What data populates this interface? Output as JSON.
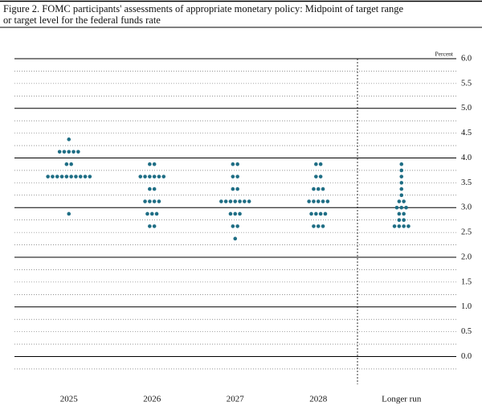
{
  "chart_data": {
    "type": "dot",
    "title_lines": [
      "Figure 2. FOMC participants' assessments of appropriate monetary policy: Midpoint of target range",
      "or target level for the federal funds rate"
    ],
    "y_unit": "Percent",
    "categories": [
      "2025",
      "2026",
      "2027",
      "2028",
      "Longer run"
    ],
    "dots": [
      [
        {
          "rate": 4.375,
          "count": 1
        },
        {
          "rate": 4.125,
          "count": 5
        },
        {
          "rate": 3.875,
          "count": 2
        },
        {
          "rate": 3.625,
          "count": 10
        },
        {
          "rate": 2.875,
          "count": 1
        }
      ],
      [
        {
          "rate": 3.875,
          "count": 2
        },
        {
          "rate": 3.625,
          "count": 6
        },
        {
          "rate": 3.375,
          "count": 2
        },
        {
          "rate": 3.125,
          "count": 4
        },
        {
          "rate": 2.875,
          "count": 3
        },
        {
          "rate": 2.625,
          "count": 2
        }
      ],
      [
        {
          "rate": 3.875,
          "count": 2
        },
        {
          "rate": 3.625,
          "count": 2
        },
        {
          "rate": 3.375,
          "count": 2
        },
        {
          "rate": 3.125,
          "count": 7
        },
        {
          "rate": 2.875,
          "count": 3
        },
        {
          "rate": 2.625,
          "count": 2
        },
        {
          "rate": 2.375,
          "count": 1
        }
      ],
      [
        {
          "rate": 3.875,
          "count": 2
        },
        {
          "rate": 3.625,
          "count": 2
        },
        {
          "rate": 3.375,
          "count": 3
        },
        {
          "rate": 3.125,
          "count": 5
        },
        {
          "rate": 2.875,
          "count": 4
        },
        {
          "rate": 2.625,
          "count": 3
        }
      ],
      [
        {
          "rate": 3.875,
          "count": 1
        },
        {
          "rate": 3.75,
          "count": 1
        },
        {
          "rate": 3.625,
          "count": 1
        },
        {
          "rate": 3.5,
          "count": 1
        },
        {
          "rate": 3.375,
          "count": 1
        },
        {
          "rate": 3.25,
          "count": 1
        },
        {
          "rate": 3.125,
          "count": 2
        },
        {
          "rate": 3.0,
          "count": 3
        },
        {
          "rate": 2.875,
          "count": 2
        },
        {
          "rate": 2.75,
          "count": 2
        },
        {
          "rate": 2.625,
          "count": 4
        }
      ]
    ],
    "color": "#1f6e85",
    "ylim": [
      -0.25,
      6.0
    ],
    "yticks": [
      {
        "value": 0,
        "label": "0.0"
      },
      0.5,
      {
        "value": 1,
        "label": "1.0"
      },
      1.5,
      {
        "value": 2,
        "label": "2.0"
      },
      2.5,
      {
        "value": 3,
        "label": "3.0"
      },
      3.5,
      {
        "value": 4,
        "label": "4.0"
      },
      4.5,
      {
        "value": 5,
        "label": "5.0"
      },
      5.5,
      {
        "value": 6,
        "label": "6.0"
      }
    ],
    "minor_yticks": [
      -0.25,
      0.25,
      0.75,
      1.25,
      1.75,
      2.25,
      2.75,
      3.25,
      3.75,
      4.25,
      4.75,
      5.25,
      5.75
    ]
  }
}
